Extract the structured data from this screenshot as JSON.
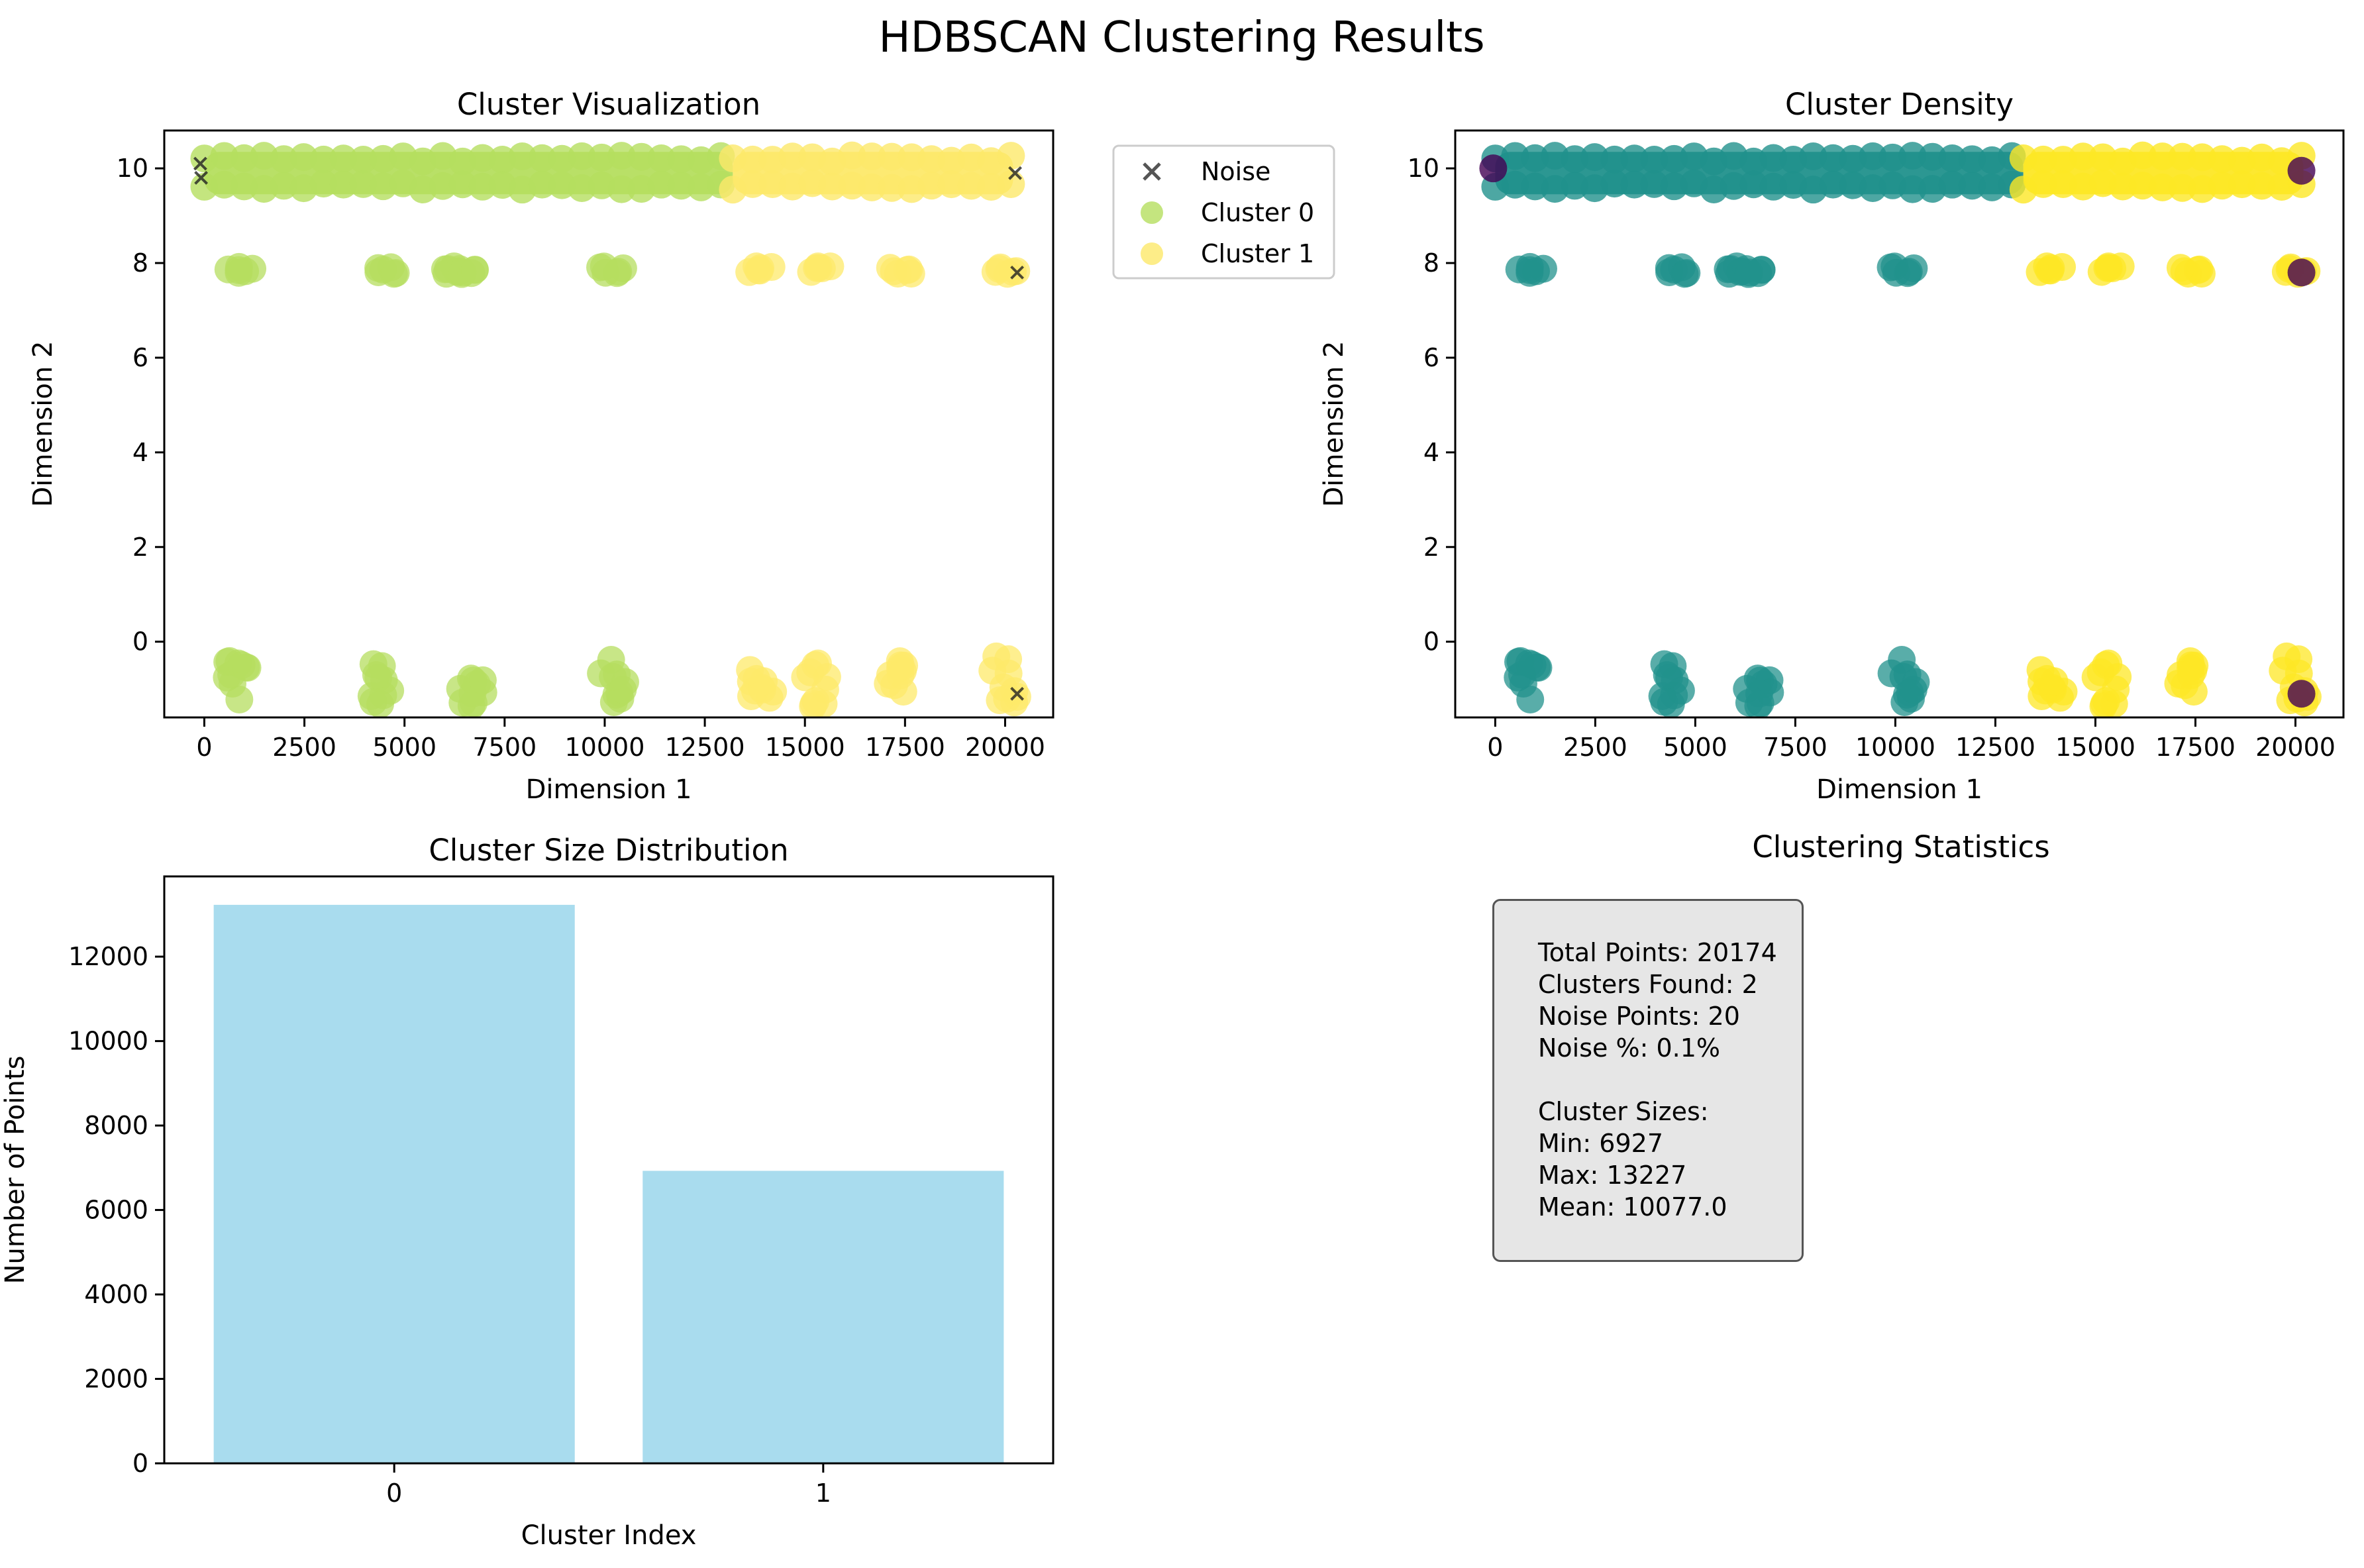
{
  "figure": {
    "suptitle": "HDBSCAN Clustering Results"
  },
  "chart_data": [
    {
      "id": "cluster-visualization",
      "type": "scatter",
      "title": "Cluster Visualization",
      "xlabel": "Dimension 1",
      "ylabel": "Dimension 2",
      "xlim": [
        -1000,
        21200
      ],
      "ylim": [
        -1.6,
        10.8
      ],
      "xticks": [
        0,
        2500,
        5000,
        7500,
        10000,
        12500,
        15000,
        17500,
        20000
      ],
      "yticks": [
        0,
        2,
        4,
        6,
        8,
        10
      ],
      "legend": {
        "placement": "outside-upper-right",
        "entries": [
          "Noise",
          "Cluster 0",
          "Cluster 1"
        ]
      },
      "series": [
        {
          "name": "Cluster 0",
          "color": "#b5de5f",
          "marker": "circle",
          "bands": [
            {
              "y": 9.9,
              "x_range": [
                0,
                13200
              ]
            }
          ],
          "clusters": [
            {
              "x": 900,
              "y": 7.85
            },
            {
              "x": 4500,
              "y": 7.85
            },
            {
              "x": 6200,
              "y": 7.85
            },
            {
              "x": 6700,
              "y": 7.85
            },
            {
              "x": 10200,
              "y": 7.85
            },
            {
              "x": 850,
              "y": -0.8
            },
            {
              "x": 4500,
              "y": -0.8
            },
            {
              "x": 6700,
              "y": -0.8
            },
            {
              "x": 10200,
              "y": -0.7
            }
          ]
        },
        {
          "name": "Cluster 1",
          "color": "#fde96a",
          "marker": "circle",
          "bands": [
            {
              "y": 9.9,
              "x_range": [
                13200,
                20200
              ]
            }
          ],
          "clusters": [
            {
              "x": 13900,
              "y": 7.85
            },
            {
              "x": 15400,
              "y": 7.85
            },
            {
              "x": 17400,
              "y": 7.85
            },
            {
              "x": 20000,
              "y": 7.85
            },
            {
              "x": 13900,
              "y": -0.85
            },
            {
              "x": 15300,
              "y": -0.8
            },
            {
              "x": 17400,
              "y": -0.8
            },
            {
              "x": 20000,
              "y": -0.7
            }
          ]
        },
        {
          "name": "Noise",
          "color": "#222222",
          "marker": "x",
          "points": [
            {
              "x": -100,
              "y": 10.1
            },
            {
              "x": -80,
              "y": 9.8
            },
            {
              "x": 20250,
              "y": 9.9
            },
            {
              "x": 20300,
              "y": 7.8
            },
            {
              "x": 20300,
              "y": -1.1
            }
          ]
        }
      ]
    },
    {
      "id": "cluster-density",
      "type": "scatter",
      "title": "Cluster Density",
      "xlabel": "Dimension 1",
      "ylabel": "Dimension 2",
      "xlim": [
        -1000,
        21200
      ],
      "ylim": [
        -1.6,
        10.8
      ],
      "xticks": [
        0,
        2500,
        5000,
        7500,
        10000,
        12500,
        15000,
        17500,
        20000
      ],
      "yticks": [
        0,
        2,
        4,
        6,
        8,
        10
      ],
      "series": [
        {
          "color": "#21918c",
          "marker": "circle",
          "bands": [
            {
              "y": 9.9,
              "x_range": [
                0,
                13200
              ]
            }
          ],
          "clusters": [
            {
              "x": 900,
              "y": 7.85
            },
            {
              "x": 4500,
              "y": 7.85
            },
            {
              "x": 6000,
              "y": 7.85
            },
            {
              "x": 6600,
              "y": 7.85
            },
            {
              "x": 10200,
              "y": 7.85
            },
            {
              "x": 850,
              "y": -0.8
            },
            {
              "x": 4500,
              "y": -0.8
            },
            {
              "x": 6600,
              "y": -0.8
            },
            {
              "x": 10200,
              "y": -0.7
            }
          ]
        },
        {
          "color": "#fde725",
          "marker": "circle",
          "bands": [
            {
              "y": 9.9,
              "x_range": [
                13200,
                20200
              ]
            }
          ],
          "clusters": [
            {
              "x": 13900,
              "y": 7.85
            },
            {
              "x": 15400,
              "y": 7.85
            },
            {
              "x": 17400,
              "y": 7.85
            },
            {
              "x": 20000,
              "y": 7.85
            },
            {
              "x": 13900,
              "y": -0.85
            },
            {
              "x": 15300,
              "y": -0.8
            },
            {
              "x": 17400,
              "y": -0.8
            },
            {
              "x": 20000,
              "y": -0.7
            }
          ]
        },
        {
          "color": "#440154",
          "marker": "circle",
          "points": [
            {
              "x": -50,
              "y": 10.0
            },
            {
              "x": 20150,
              "y": 9.95
            },
            {
              "x": 20150,
              "y": 7.8
            },
            {
              "x": 20150,
              "y": -1.1
            }
          ]
        }
      ]
    },
    {
      "id": "cluster-size-distribution",
      "type": "bar",
      "title": "Cluster Size Distribution",
      "xlabel": "Cluster Index",
      "ylabel": "Number of Points",
      "categories": [
        "0",
        "1"
      ],
      "values": [
        13227,
        6927
      ],
      "ylim": [
        0,
        13900
      ],
      "yticks": [
        0,
        2000,
        4000,
        6000,
        8000,
        10000,
        12000
      ],
      "color": "#a9dcee"
    }
  ],
  "stats_panel": {
    "title": "Clustering Statistics",
    "lines": [
      "Total Points: 20174",
      "Clusters Found: 2",
      "Noise Points: 20",
      "Noise %: 0.1%",
      "",
      "Cluster Sizes:",
      "Min: 6927",
      "Max: 13227",
      "Mean: 10077.0"
    ]
  }
}
